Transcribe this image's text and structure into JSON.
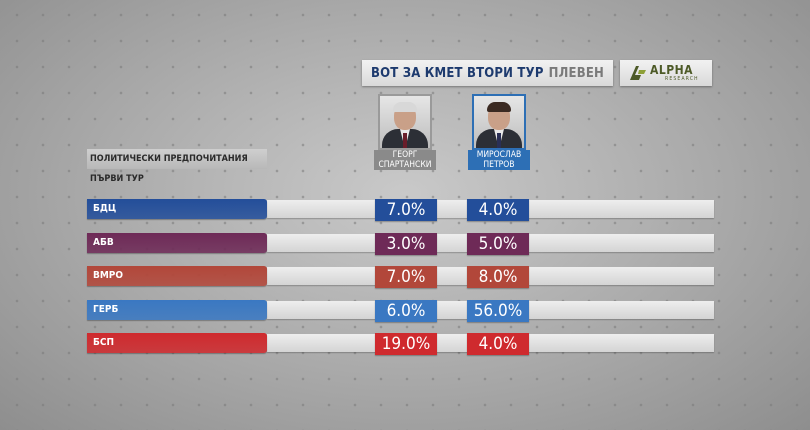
{
  "header": {
    "title_main": "ВОТ ЗА КМЕТ ВТОРИ ТУР",
    "title_city": "ПЛЕВЕН",
    "logo_text": "ALPHA",
    "logo_subtext": "RESEARCH"
  },
  "subtitle": "ПОЛИТИЧЕСКИ ПРЕДПОЧИТАНИЯ ПЪРВИ ТУР",
  "candidates": [
    {
      "first": "ГЕОРГ",
      "last": "СПАРТАНСКИ",
      "color": "#8a8a8a",
      "hair": "#d8d8d8"
    },
    {
      "first": "МИРОСЛАВ",
      "last": "ПЕТРОВ",
      "color": "#2d6fb5",
      "hair": "#3b2a22"
    }
  ],
  "chart_data": {
    "type": "table",
    "title": "ВОТ ЗА КМЕТ ВТОРИ ТУР ПЛЕВЕН",
    "row_header": "ПОЛИТИЧЕСКИ ПРЕДПОЧИТАНИЯ ПЪРВИ ТУР",
    "columns": [
      "ГЕОРГ СПАРТАНСКИ",
      "МИРОСЛАВ ПЕТРОВ"
    ],
    "rows": [
      {
        "party": "БДЦ",
        "color": "#234e9a",
        "values": [
          "7.0%",
          "4.0%"
        ]
      },
      {
        "party": "АБВ",
        "color": "#6e2a57",
        "values": [
          "3.0%",
          "5.0%"
        ]
      },
      {
        "party": "ВМРО",
        "color": "#b2473a",
        "values": [
          "7.0%",
          "8.0%"
        ]
      },
      {
        "party": "ГЕРБ",
        "color": "#3a78c2",
        "values": [
          "6.0%",
          "56.0%"
        ]
      },
      {
        "party": "БСП",
        "color": "#cf2a2e",
        "values": [
          "19.0%",
          "4.0%"
        ]
      }
    ]
  }
}
